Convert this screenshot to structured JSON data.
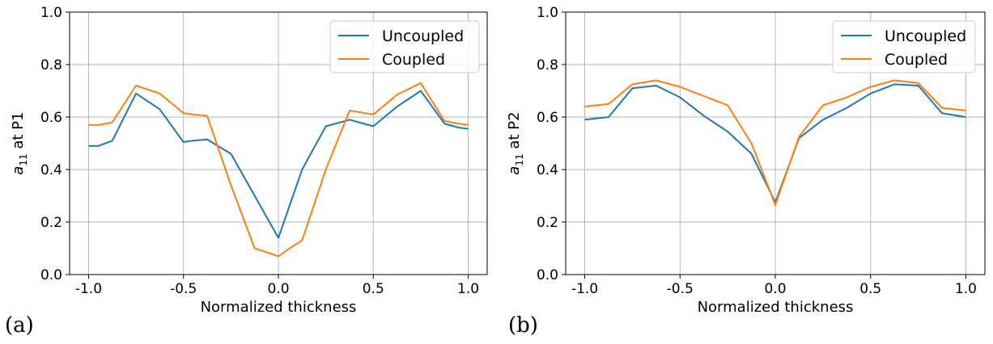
{
  "chart_data": [
    {
      "type": "line",
      "panel_label": "(a)",
      "xlabel": "Normalized thickness",
      "ylabel_main": "a",
      "ylabel_sub": "11",
      "ylabel_rest": " at P1",
      "xlim": [
        -1.1,
        1.1
      ],
      "ylim": [
        0.0,
        1.0
      ],
      "xticks": [
        -1.0,
        -0.5,
        0.0,
        0.5,
        1.0
      ],
      "xtick_labels": [
        "-1.0",
        "-0.5",
        "0.0",
        "0.5",
        "1.0"
      ],
      "yticks": [
        0.0,
        0.2,
        0.4,
        0.6,
        0.8,
        1.0
      ],
      "ytick_labels": [
        "0.0",
        "0.2",
        "0.4",
        "0.6",
        "0.8",
        "1.0"
      ],
      "grid": true,
      "legend_position": "top-right",
      "series": [
        {
          "name": "Uncoupled",
          "color": "#1f77b4",
          "x": [
            -1.0,
            -0.95,
            -0.875,
            -0.82,
            -0.75,
            -0.625,
            -0.5,
            -0.45,
            -0.375,
            -0.25,
            -0.125,
            0.0,
            0.125,
            0.25,
            0.375,
            0.5,
            0.625,
            0.75,
            0.875,
            0.95,
            1.0
          ],
          "y": [
            0.49,
            0.49,
            0.51,
            0.59,
            0.69,
            0.63,
            0.505,
            0.51,
            0.515,
            0.46,
            0.3,
            0.14,
            0.4,
            0.565,
            0.59,
            0.565,
            0.64,
            0.7,
            0.575,
            0.56,
            0.555
          ]
        },
        {
          "name": "Coupled",
          "color": "#ff7f0e",
          "x": [
            -1.0,
            -0.95,
            -0.875,
            -0.75,
            -0.625,
            -0.5,
            -0.45,
            -0.375,
            -0.25,
            -0.125,
            0.0,
            0.08,
            0.125,
            0.25,
            0.375,
            0.5,
            0.625,
            0.75,
            0.875,
            0.95,
            1.0
          ],
          "y": [
            0.57,
            0.57,
            0.58,
            0.72,
            0.69,
            0.615,
            0.61,
            0.605,
            0.34,
            0.1,
            0.07,
            0.11,
            0.13,
            0.4,
            0.625,
            0.61,
            0.685,
            0.73,
            0.585,
            0.575,
            0.57
          ]
        }
      ]
    },
    {
      "type": "line",
      "panel_label": "(b)",
      "xlabel": "Normalized thickness",
      "ylabel_main": "a",
      "ylabel_sub": "11",
      "ylabel_rest": " at P2",
      "xlim": [
        -1.1,
        1.1
      ],
      "ylim": [
        0.0,
        1.0
      ],
      "xticks": [
        -1.0,
        -0.5,
        0.0,
        0.5,
        1.0
      ],
      "xtick_labels": [
        "-1.0",
        "-0.5",
        "0.0",
        "0.5",
        "1.0"
      ],
      "yticks": [
        0.0,
        0.2,
        0.4,
        0.6,
        0.8,
        1.0
      ],
      "ytick_labels": [
        "0.0",
        "0.2",
        "0.4",
        "0.6",
        "0.8",
        "1.0"
      ],
      "grid": true,
      "legend_position": "top-right",
      "series": [
        {
          "name": "Uncoupled",
          "color": "#1f77b4",
          "x": [
            -1.0,
            -0.875,
            -0.75,
            -0.625,
            -0.5,
            -0.375,
            -0.25,
            -0.125,
            0.0,
            0.125,
            0.25,
            0.375,
            0.5,
            0.625,
            0.75,
            0.875,
            1.0
          ],
          "y": [
            0.59,
            0.6,
            0.71,
            0.72,
            0.675,
            0.605,
            0.545,
            0.46,
            0.275,
            0.52,
            0.59,
            0.635,
            0.69,
            0.725,
            0.72,
            0.615,
            0.6
          ]
        },
        {
          "name": "Coupled",
          "color": "#ff7f0e",
          "x": [
            -1.0,
            -0.875,
            -0.75,
            -0.625,
            -0.5,
            -0.375,
            -0.25,
            -0.125,
            0.0,
            0.125,
            0.25,
            0.375,
            0.5,
            0.625,
            0.75,
            0.875,
            1.0
          ],
          "y": [
            0.64,
            0.65,
            0.725,
            0.74,
            0.715,
            0.68,
            0.645,
            0.5,
            0.265,
            0.525,
            0.645,
            0.675,
            0.715,
            0.74,
            0.73,
            0.635,
            0.625
          ]
        }
      ]
    }
  ]
}
